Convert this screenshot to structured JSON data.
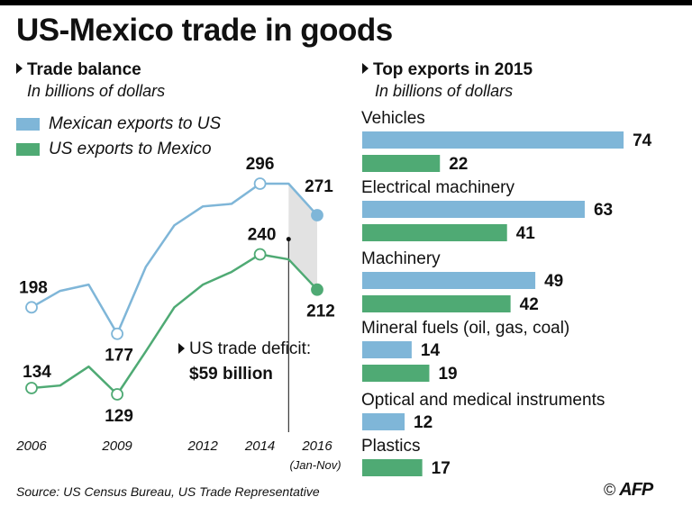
{
  "title": "US-Mexico trade in goods",
  "colors": {
    "mexico": "#7fb6d8",
    "us": "#4faa74",
    "deficit_shade": "#e2e2e2"
  },
  "left_panel": {
    "title": "Trade balance",
    "subtitle": "In billions of dollars",
    "legend": [
      "Mexican exports to US",
      "US exports to Mexico"
    ],
    "deficit_label": "US trade deficit:",
    "deficit_value": "$59 billion",
    "last_year_note": "(Jan-Nov)"
  },
  "right_panel": {
    "title": "Top exports in 2015",
    "subtitle": "In billions of dollars"
  },
  "chart_data": [
    {
      "type": "line",
      "title": "Trade balance",
      "x_ticks": [
        "2006",
        "2009",
        "2012",
        "2014",
        "2016"
      ],
      "series": [
        {
          "name": "Mexican exports to US",
          "x": [
            2006,
            2007,
            2008,
            2009,
            2010,
            2011,
            2012,
            2013,
            2014,
            2015,
            2016
          ],
          "values": [
            198,
            211,
            216,
            177,
            230,
            263,
            278,
            280,
            296,
            296,
            271
          ]
        },
        {
          "name": "US exports to Mexico",
          "x": [
            2006,
            2007,
            2008,
            2009,
            2010,
            2011,
            2012,
            2013,
            2014,
            2015,
            2016
          ],
          "values": [
            134,
            136,
            151,
            129,
            163,
            198,
            216,
            226,
            240,
            236,
            212
          ]
        }
      ],
      "point_labels": [
        {
          "series": 0,
          "index": 0,
          "text": "198"
        },
        {
          "series": 0,
          "index": 3,
          "text": "177"
        },
        {
          "series": 0,
          "index": 8,
          "text": "296"
        },
        {
          "series": 0,
          "index": 10,
          "text": "271"
        },
        {
          "series": 1,
          "index": 0,
          "text": "134"
        },
        {
          "series": 1,
          "index": 3,
          "text": "129"
        },
        {
          "series": 1,
          "index": 8,
          "text": "240"
        },
        {
          "series": 1,
          "index": 10,
          "text": "212"
        }
      ],
      "grid": false
    },
    {
      "type": "bar",
      "title": "Top exports in 2015",
      "categories": [
        "Vehicles",
        "Electrical machinery",
        "Machinery",
        "Mineral fuels (oil, gas, coal)",
        "Optical and medical instruments",
        "Plastics"
      ],
      "series": [
        {
          "name": "Mexican exports to US",
          "values": [
            74,
            63,
            49,
            14,
            12,
            null
          ]
        },
        {
          "name": "US exports to Mexico",
          "values": [
            22,
            41,
            42,
            19,
            null,
            17
          ]
        }
      ],
      "value_labels": [
        [
          "74",
          "63",
          "49",
          "14",
          "12",
          ""
        ],
        [
          "22",
          "41",
          "42",
          "19",
          "",
          "17"
        ]
      ]
    }
  ],
  "footer": {
    "source": "Source: US Census Bureau, US Trade Representative",
    "copyright": "©",
    "logo": "AFP"
  }
}
